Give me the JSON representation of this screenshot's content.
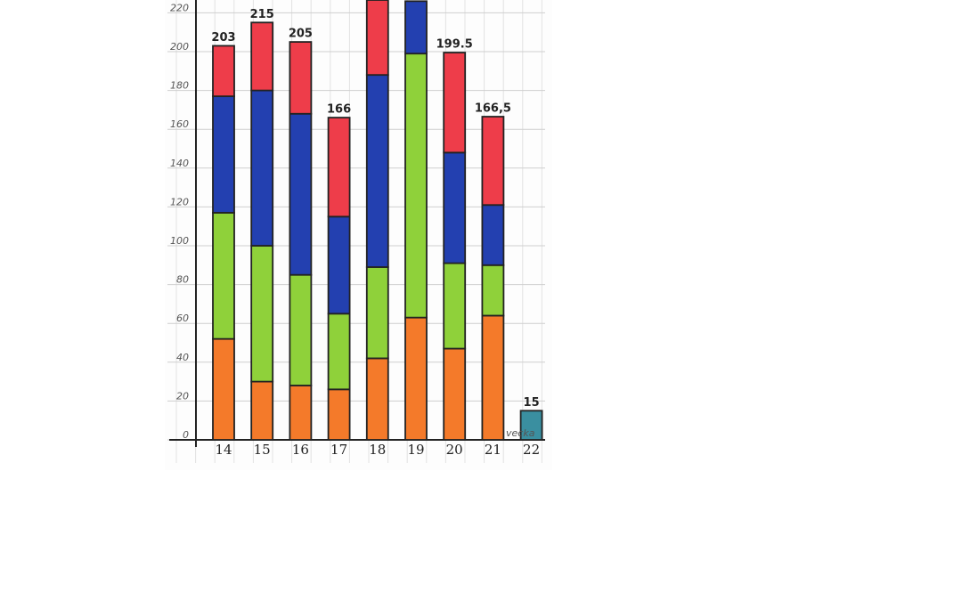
{
  "chart_data": {
    "type": "stacked-bar",
    "categories": [
      "14",
      "15",
      "16",
      "17",
      "18",
      "19",
      "20",
      "21",
      "22"
    ],
    "x_label": "vecka",
    "series": [
      {
        "color": "#f47a2a",
        "values": [
          52,
          30,
          28,
          26,
          42,
          63,
          47,
          64,
          null
        ]
      },
      {
        "color": "#8fd13a",
        "values": [
          65,
          70,
          57,
          39,
          47,
          136,
          44,
          26,
          null
        ]
      },
      {
        "color": "#2340b0",
        "values": [
          60,
          80,
          83,
          50,
          99,
          27,
          57,
          31,
          null
        ]
      },
      {
        "color": "#ee3d4a",
        "values": [
          26,
          35,
          37,
          51,
          40,
          null,
          51.5,
          45.5,
          null
        ]
      },
      {
        "color": "#3a8fa0",
        "values": [
          null,
          null,
          null,
          null,
          null,
          null,
          null,
          null,
          15
        ]
      }
    ],
    "totals": [
      203,
      215,
      205,
      166,
      null,
      null,
      199.5,
      166.5,
      15
    ],
    "total_labels": [
      "203",
      "215",
      "205",
      "166",
      null,
      null,
      "199.5",
      "166,5",
      "15"
    ],
    "ylim": [
      0,
      226.6
    ],
    "yticks": [
      0,
      20,
      40,
      60,
      80,
      100,
      120,
      140,
      160,
      180,
      200,
      220
    ],
    "grid": true
  }
}
